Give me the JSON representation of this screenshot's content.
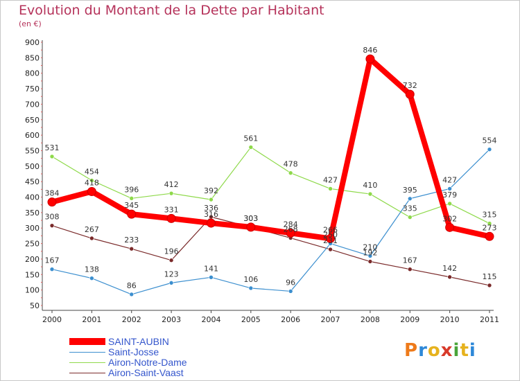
{
  "header": {
    "title": "Evolution du Montant de la Dette par Habitant",
    "subtitle": "(en €)"
  },
  "logo": {
    "letters": [
      "P",
      "r",
      "o",
      "x",
      "i",
      "t",
      "i"
    ],
    "colors": [
      "#ee7a1a",
      "#2d88d8",
      "#e6b21e",
      "#d83a2a",
      "#4aa43a",
      "#e6b21e",
      "#2d88d8"
    ]
  },
  "chart_data": {
    "type": "line",
    "title": "Evolution du Montant de la Dette par Habitant",
    "subtitle": "(en €)",
    "xlabel": "",
    "ylabel": "",
    "ylim": [
      50,
      900
    ],
    "yticks": [
      50,
      100,
      150,
      200,
      250,
      300,
      350,
      400,
      450,
      500,
      550,
      600,
      650,
      700,
      750,
      800,
      850,
      900
    ],
    "x": [
      "2000",
      "2001",
      "2002",
      "2003",
      "2004",
      "2005",
      "2006",
      "2007",
      "2008",
      "2009",
      "2010",
      "2011"
    ],
    "grid": false,
    "legend_position": "bottom-left",
    "series": [
      {
        "name": "SAINT-AUBIN",
        "color": "#ff0000",
        "values": [
          384,
          418,
          345,
          331,
          316,
          303,
          284,
          266,
          846,
          732,
          302,
          273
        ],
        "labels": [
          "384",
          "418",
          "345",
          "331",
          "316",
          "303",
          "284",
          "266",
          "846",
          "732",
          "302",
          "273"
        ]
      },
      {
        "name": "Saint-Josse",
        "color": "#3c8fcf",
        "values": [
          167,
          138,
          86,
          123,
          141,
          106,
          96,
          250,
          210,
          395,
          427,
          554
        ],
        "labels": [
          "167",
          "138",
          "86",
          "123",
          "141",
          "106",
          "96",
          "250",
          "210",
          "395",
          "427",
          "554"
        ]
      },
      {
        "name": "Airon-Notre-Dame",
        "color": "#8ed94a",
        "values": [
          531,
          454,
          396,
          412,
          392,
          561,
          478,
          427,
          410,
          335,
          379,
          315
        ],
        "labels": [
          "531",
          "454",
          "396",
          "412",
          "392",
          "561",
          "478",
          "427",
          "410",
          "335",
          "379",
          "315"
        ]
      },
      {
        "name": "Airon-Saint-Vaast",
        "color": "#7a2a2a",
        "values": [
          308,
          267,
          233,
          196,
          336,
          303,
          268,
          231,
          192,
          167,
          142,
          115
        ],
        "labels": [
          "308",
          "267",
          "233",
          "196",
          "336",
          "303",
          "268",
          "231",
          "192",
          "167",
          "142",
          "115"
        ]
      }
    ]
  }
}
